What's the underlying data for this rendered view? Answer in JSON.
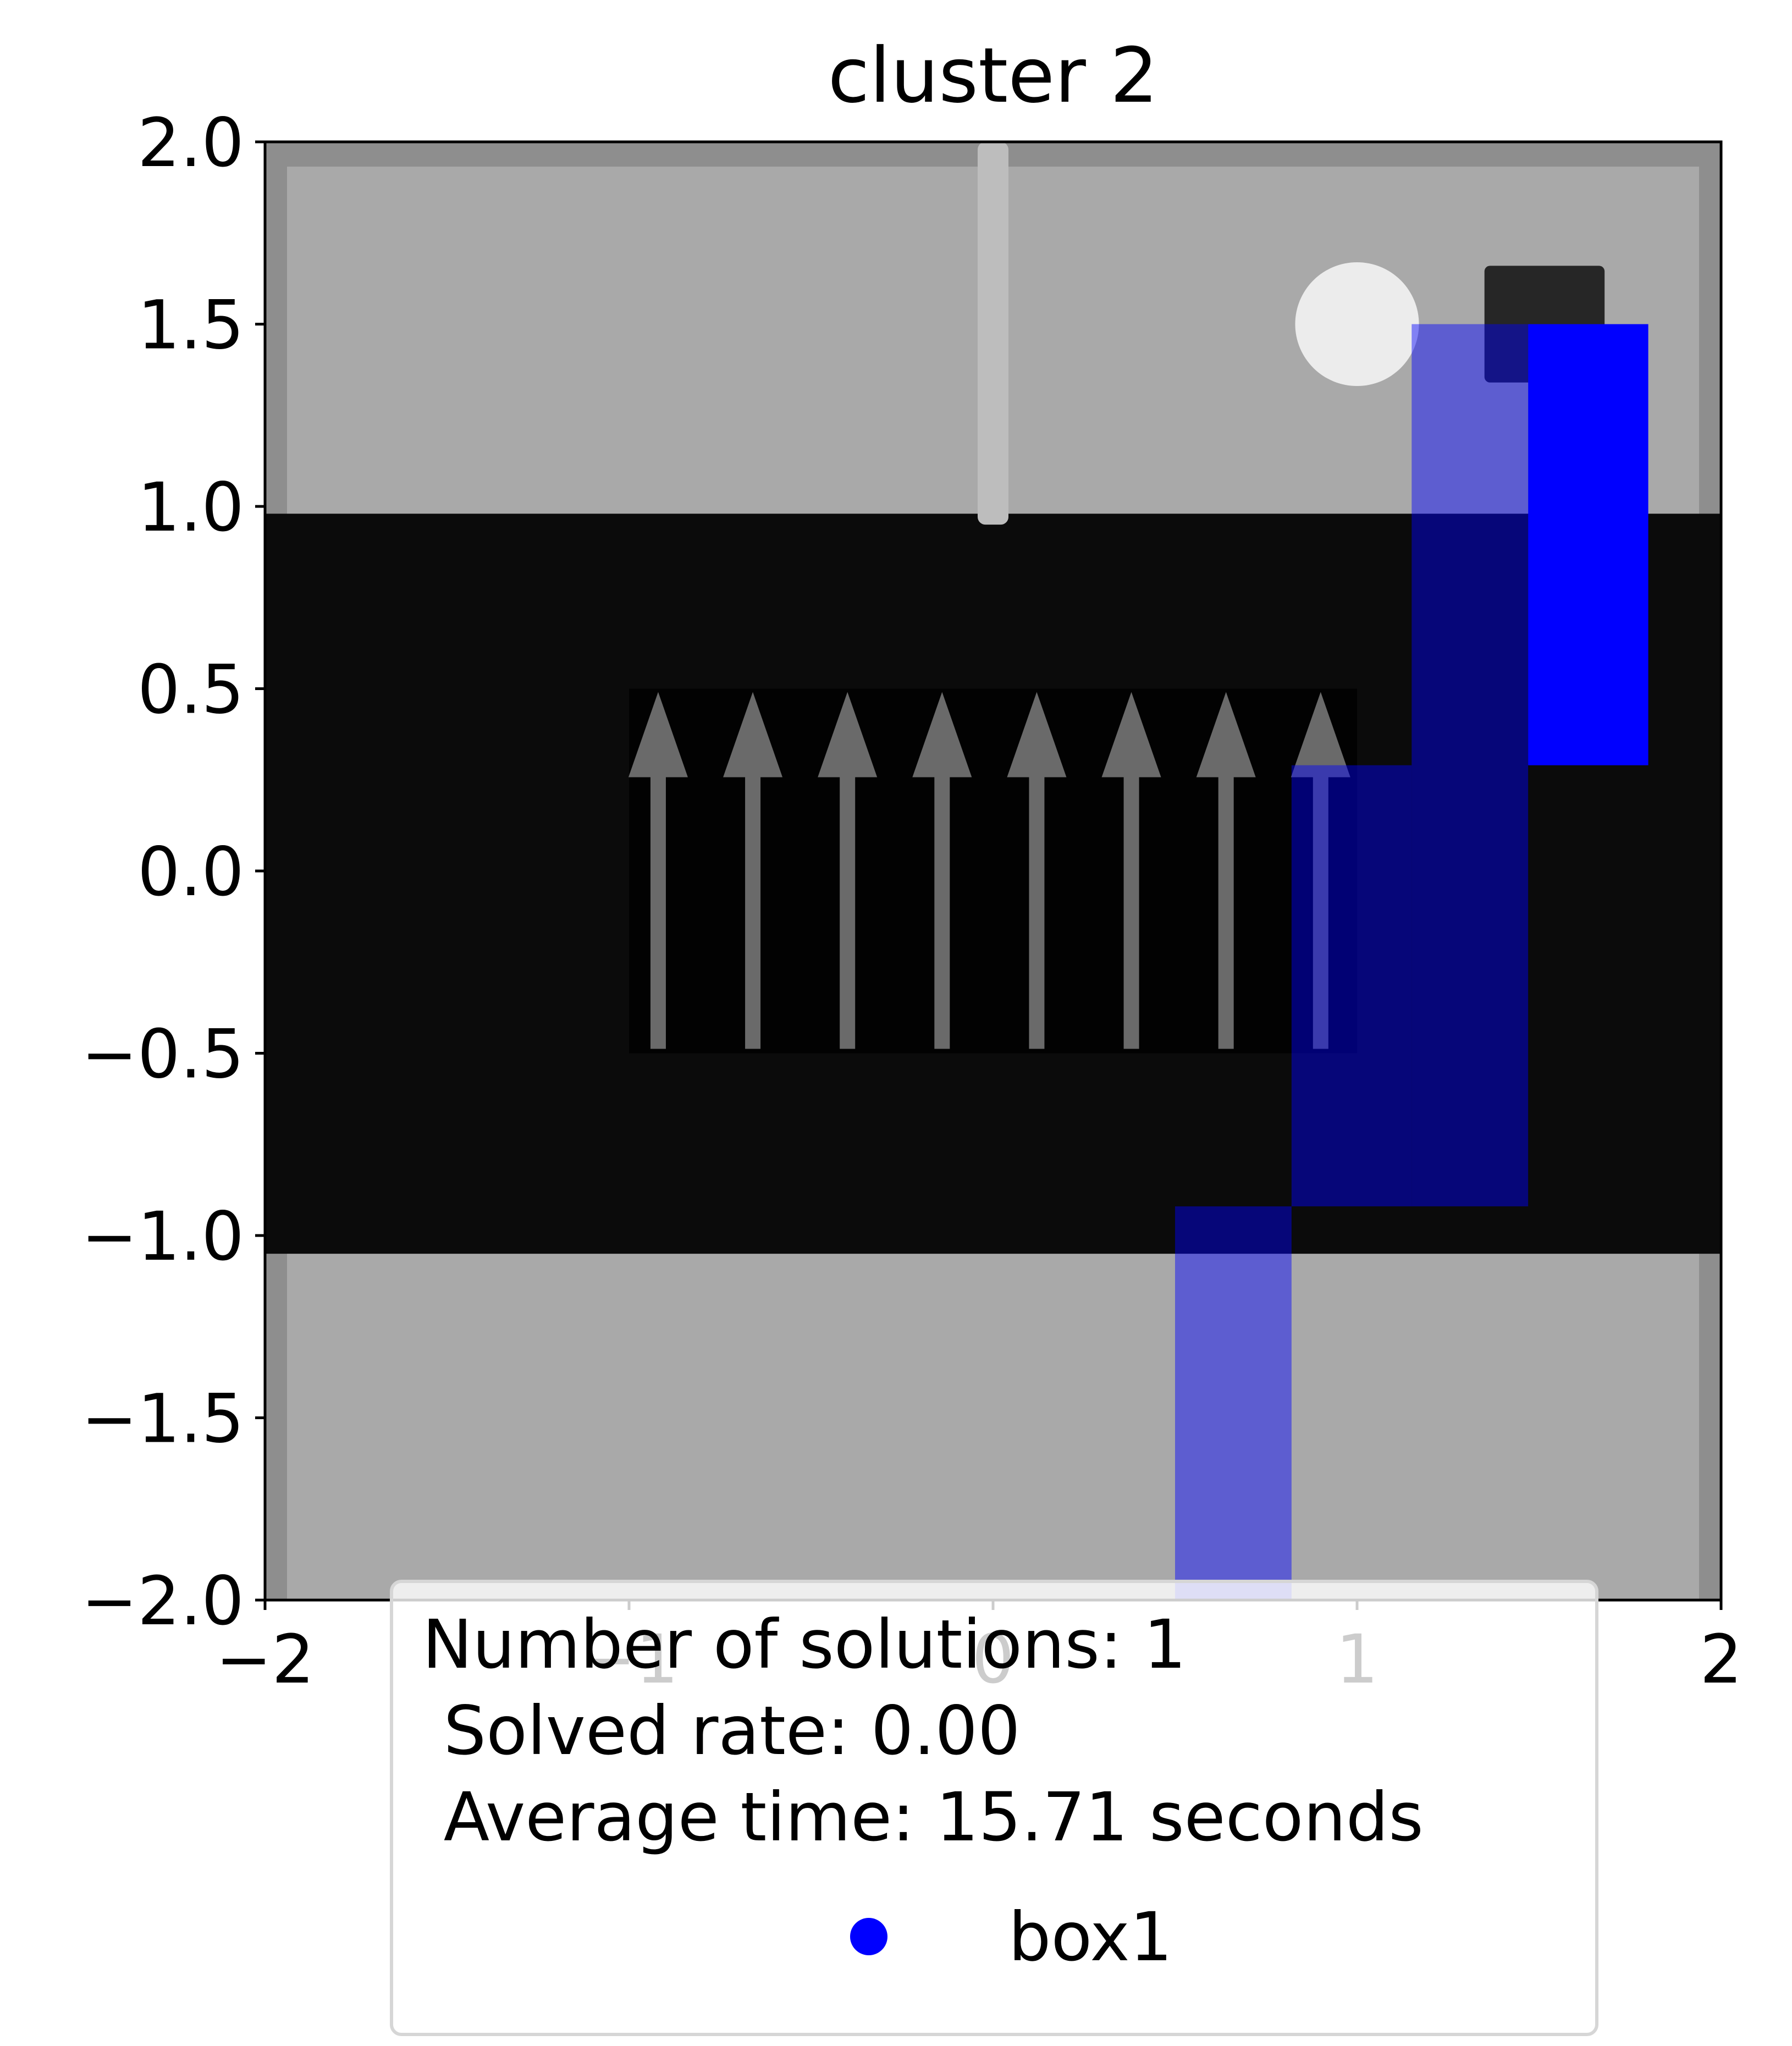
{
  "colors": {
    "wall": "#8e8e8e",
    "floor": "#a9a9a9",
    "belt": "#0b0b0b",
    "belt_panel": "#020202",
    "belt_arrow": "#6a6a6a",
    "pole": "#bdbdbd",
    "sphere": "#ececec",
    "block": "#262626",
    "path": "#0000ff",
    "path_faded": "#8080e0",
    "path_dark": "#06064a",
    "legend_border": "#d6d6d6"
  },
  "chart_data": {
    "type": "scatter",
    "title": "cluster 2",
    "xlabel": "",
    "ylabel": "",
    "xlim": [
      -2,
      2
    ],
    "ylim": [
      -2,
      2
    ],
    "x_ticks": [
      {
        "value": -2,
        "label": "−2"
      },
      {
        "value": -1,
        "label": "−1"
      },
      {
        "value": 0,
        "label": "0"
      },
      {
        "value": 1,
        "label": "1"
      },
      {
        "value": 2,
        "label": "2"
      }
    ],
    "y_ticks": [
      {
        "value": 2.0,
        "label": "2.0"
      },
      {
        "value": 1.5,
        "label": "1.5"
      },
      {
        "value": 1.0,
        "label": "1.0"
      },
      {
        "value": 0.5,
        "label": "0.5"
      },
      {
        "value": 0.0,
        "label": "0.0"
      },
      {
        "value": -0.5,
        "label": "−0.5"
      },
      {
        "value": -1.0,
        "label": "−1.0"
      },
      {
        "value": -1.5,
        "label": "−1.5"
      },
      {
        "value": -2.0,
        "label": "−2.0"
      }
    ],
    "grid": false,
    "background_scene": {
      "belt": {
        "x0": -2.0,
        "x1": 2.0,
        "y0": -1.05,
        "y1": 0.98
      },
      "belt_panel": {
        "x0": -1.0,
        "x1": 1.0,
        "y0": -0.5,
        "y1": 0.5
      },
      "belt_arrows_x": [
        -0.92,
        -0.66,
        -0.4,
        -0.14,
        0.12,
        0.38,
        0.64,
        0.9
      ],
      "pole": {
        "x": 0.0,
        "y0": 0.95,
        "y1": 2.0
      },
      "sphere": {
        "x": 1.0,
        "y": 1.5,
        "r": 0.17
      },
      "block": {
        "x0": 1.35,
        "x1": 1.68,
        "y0": 1.34,
        "y1": 1.66
      }
    },
    "series": [
      {
        "name": "box1",
        "cells": [
          {
            "x0": 0.5,
            "x1": 0.82,
            "y0": -2.0,
            "y1": -0.92
          },
          {
            "x0": 0.82,
            "x1": 1.15,
            "y0": -0.92,
            "y1": 0.29
          },
          {
            "x0": 1.15,
            "x1": 1.47,
            "y0": -0.92,
            "y1": 1.5
          },
          {
            "x0": 1.47,
            "x1": 1.8,
            "y0": 0.29,
            "y1": 1.5
          }
        ]
      }
    ],
    "legend": {
      "placement": "lower center",
      "lines": [
        "Number of solutions: 1",
        " Solved rate: 0.00",
        " Average time: 15.71 seconds"
      ],
      "entry_label": "box1"
    }
  }
}
